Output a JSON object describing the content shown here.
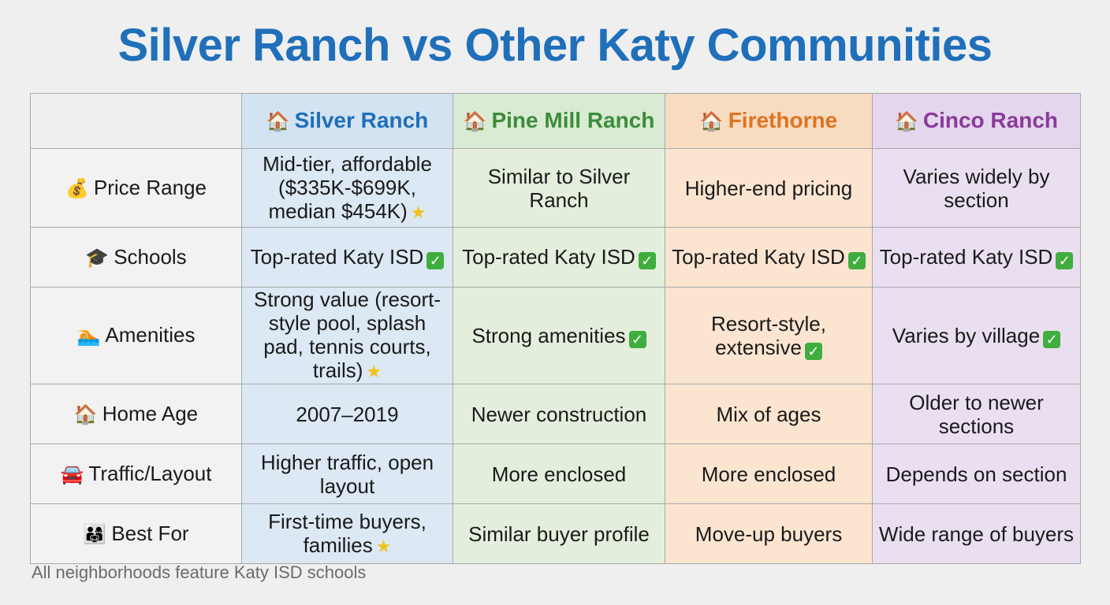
{
  "title": "Silver Ranch vs Other Katy Communities",
  "columns": [
    {
      "label": "Silver Ranch",
      "icon": "house-icon"
    },
    {
      "label": "Pine Mill Ranch",
      "icon": "house-icon"
    },
    {
      "label": "Firethorne",
      "icon": "house-icon"
    },
    {
      "label": "Cinco Ranch",
      "icon": "house-icon"
    }
  ],
  "rows": [
    {
      "label": "Price Range",
      "icon": "money-bag-icon",
      "cells": [
        {
          "text": "Mid-tier, affordable ($335K-$699K, median $454K)",
          "mark": "star"
        },
        {
          "text": "Similar to Silver Ranch",
          "mark": ""
        },
        {
          "text": "Higher-end pricing",
          "mark": ""
        },
        {
          "text": "Varies widely by section",
          "mark": ""
        }
      ]
    },
    {
      "label": "Schools",
      "icon": "graduation-cap-icon",
      "cells": [
        {
          "text": "Top-rated Katy ISD",
          "mark": "check"
        },
        {
          "text": "Top-rated Katy ISD",
          "mark": "check"
        },
        {
          "text": "Top-rated Katy ISD",
          "mark": "check"
        },
        {
          "text": "Top-rated Katy ISD",
          "mark": "check"
        }
      ]
    },
    {
      "label": "Amenities",
      "icon": "swimmer-icon",
      "cells": [
        {
          "text": "Strong value (resort-style pool, splash pad, tennis courts, trails)",
          "mark": "star"
        },
        {
          "text": "Strong amenities",
          "mark": "check"
        },
        {
          "text": "Resort-style, extensive",
          "mark": "check"
        },
        {
          "text": "Varies by village",
          "mark": "check"
        }
      ]
    },
    {
      "label": "Home Age",
      "icon": "house-icon",
      "cells": [
        {
          "text": "2007–2019",
          "mark": ""
        },
        {
          "text": "Newer construction",
          "mark": ""
        },
        {
          "text": "Mix of ages",
          "mark": ""
        },
        {
          "text": "Older to newer sections",
          "mark": ""
        }
      ]
    },
    {
      "label": "Traffic/Layout",
      "icon": "car-icon",
      "cells": [
        {
          "text": "Higher traffic, open layout",
          "mark": ""
        },
        {
          "text": "More enclosed",
          "mark": ""
        },
        {
          "text": "More enclosed",
          "mark": ""
        },
        {
          "text": "Depends on section",
          "mark": ""
        }
      ]
    },
    {
      "label": "Best For",
      "icon": "family-icon",
      "cells": [
        {
          "text": "First-time buyers, families",
          "mark": "star"
        },
        {
          "text": "Similar buyer profile",
          "mark": ""
        },
        {
          "text": "Move-up buyers",
          "mark": ""
        },
        {
          "text": "Wide range of buyers",
          "mark": ""
        }
      ]
    }
  ],
  "footnote": "All neighborhoods feature Katy ISD schools"
}
